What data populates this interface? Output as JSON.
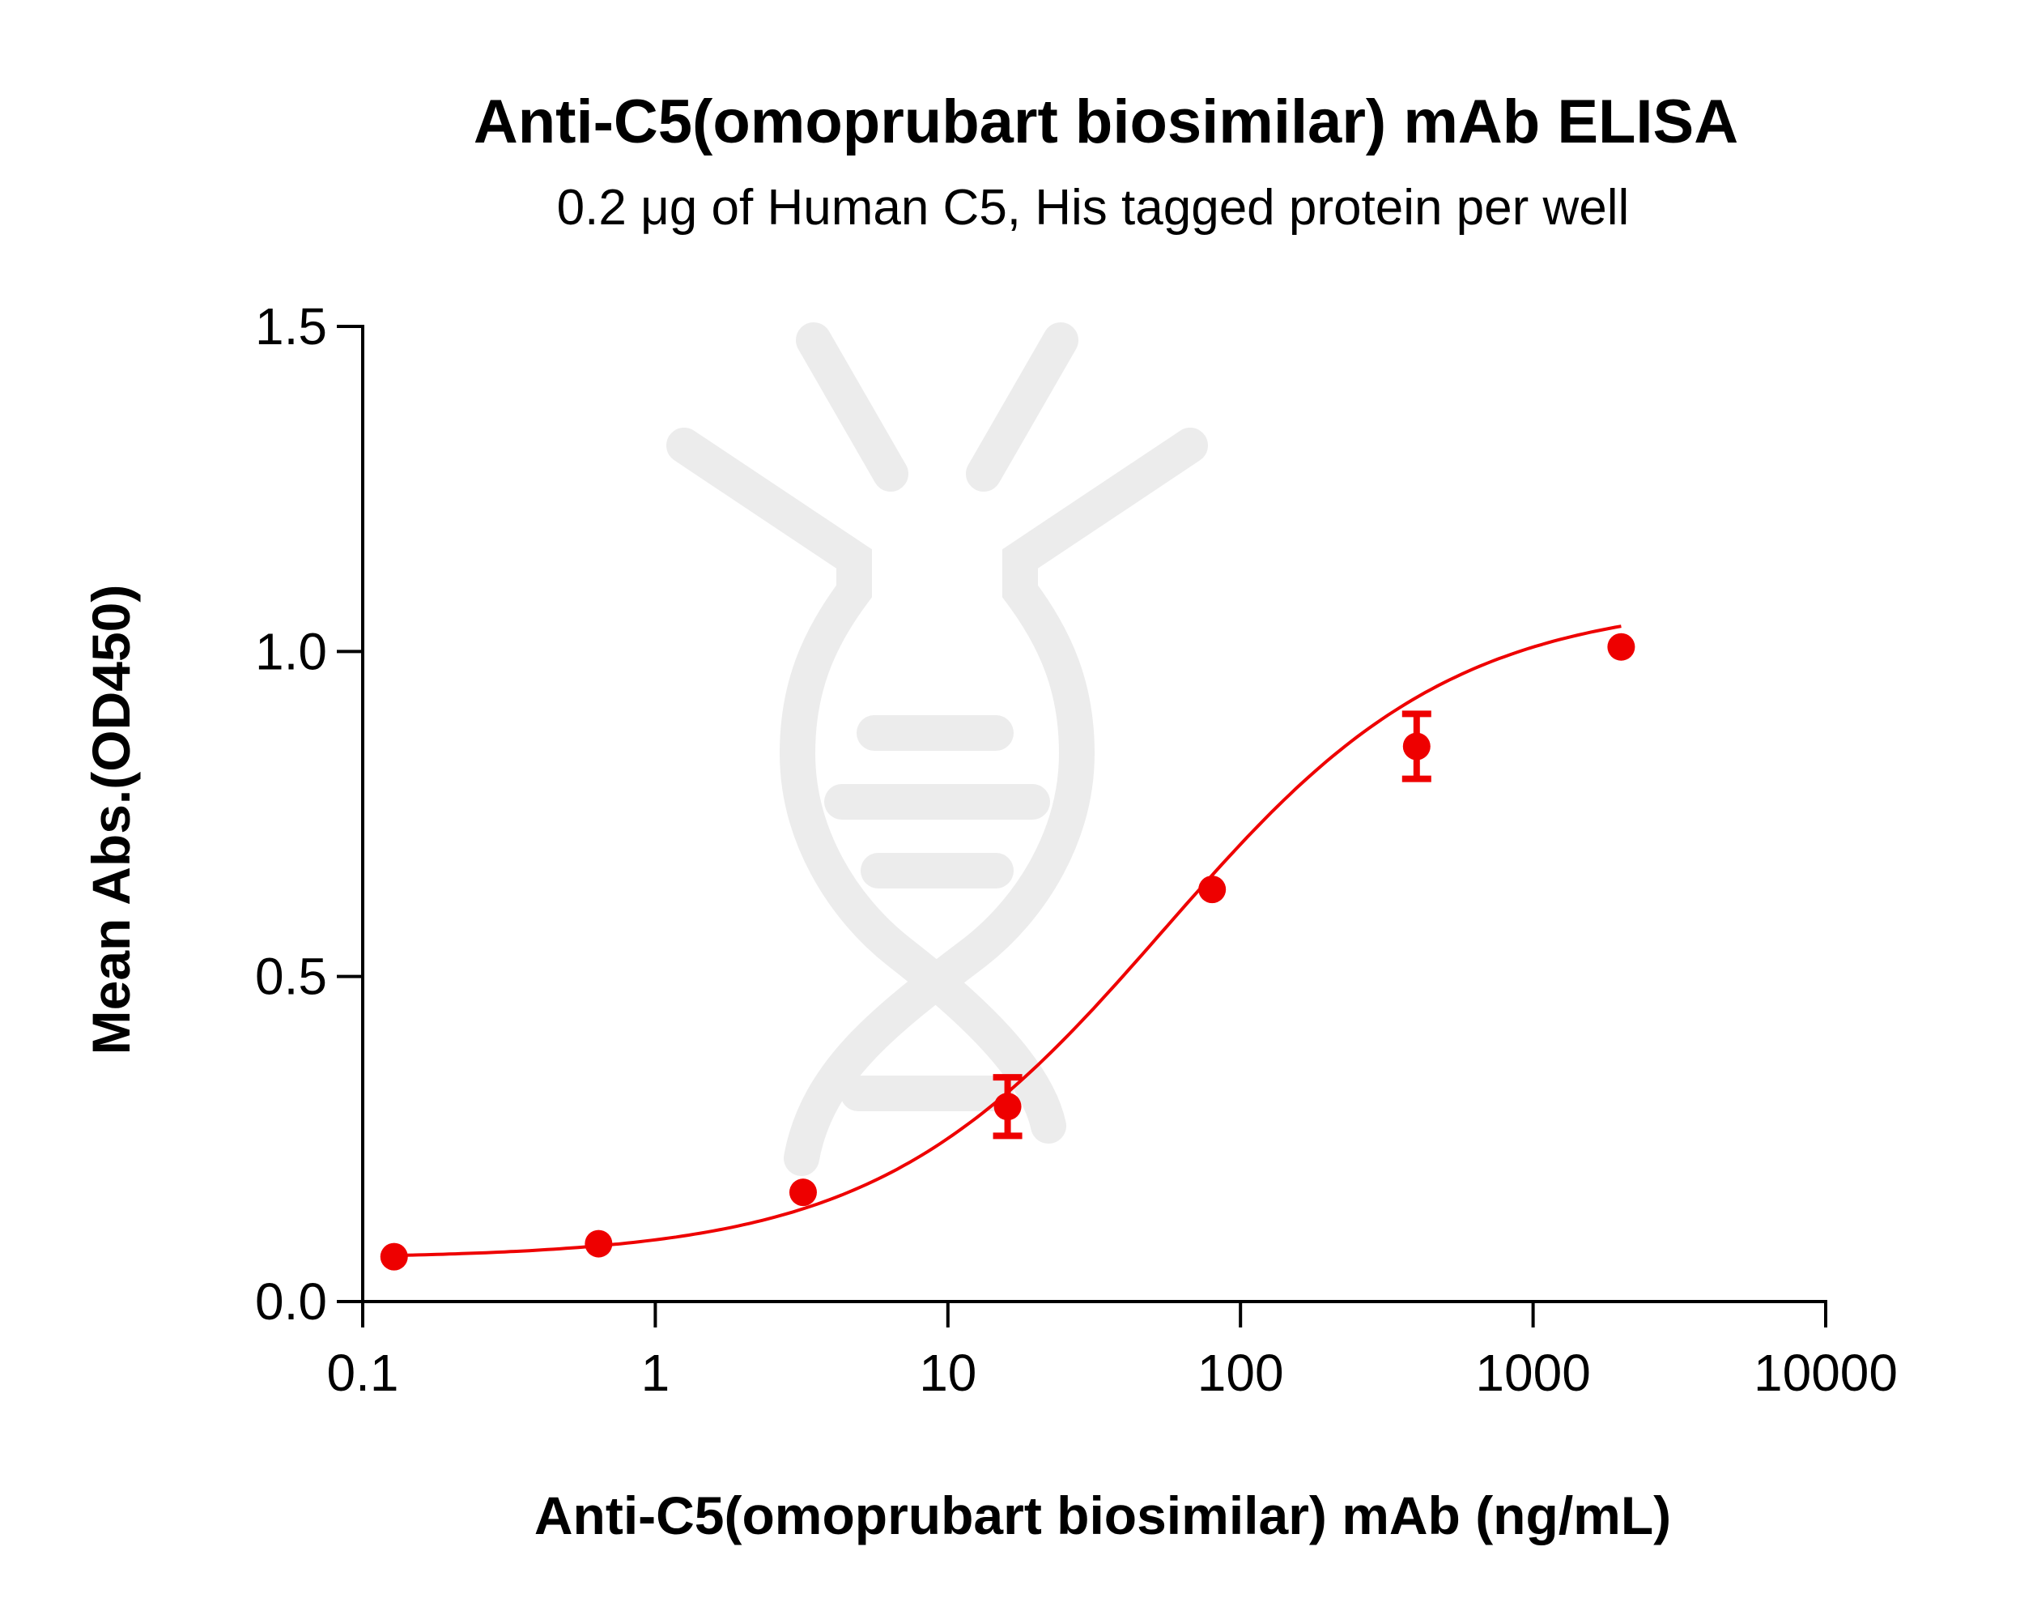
{
  "chart_data": {
    "type": "scatter",
    "title": "Anti-C5(omoprubart biosimilar) mAb ELISA",
    "subtitle": "0.2 μg of Human C5, His tagged protein per well",
    "xlabel": "Anti-C5(omoprubart biosimilar) mAb (ng/mL)",
    "ylabel": "Mean Abs.(OD450)",
    "x_scale": "log",
    "xlim": [
      0.1,
      10000
    ],
    "ylim": [
      0,
      1.5
    ],
    "x_ticks": [
      "0.1",
      "1",
      "10",
      "100",
      "1000",
      "10000"
    ],
    "y_ticks": [
      "0.0",
      "0.5",
      "1.0",
      "1.5"
    ],
    "grid": false,
    "legend": "none",
    "series": [
      {
        "color": "#ee0000",
        "points": [
          {
            "x": 0.128,
            "y": 0.069,
            "err": 0.006
          },
          {
            "x": 0.64,
            "y": 0.089,
            "err": 0.006
          },
          {
            "x": 3.2,
            "y": 0.168,
            "err": 0.007
          },
          {
            "x": 16,
            "y": 0.3,
            "err": 0.045
          },
          {
            "x": 80,
            "y": 0.634,
            "err": 0.01
          },
          {
            "x": 400,
            "y": 0.854,
            "err": 0.05
          },
          {
            "x": 2000,
            "y": 1.007,
            "err": 0.008
          }
        ],
        "fit": {
          "bottom": 0.066,
          "top": 1.08,
          "ec50": 55,
          "hill": 0.88
        }
      }
    ],
    "watermark": "dna-logo"
  }
}
